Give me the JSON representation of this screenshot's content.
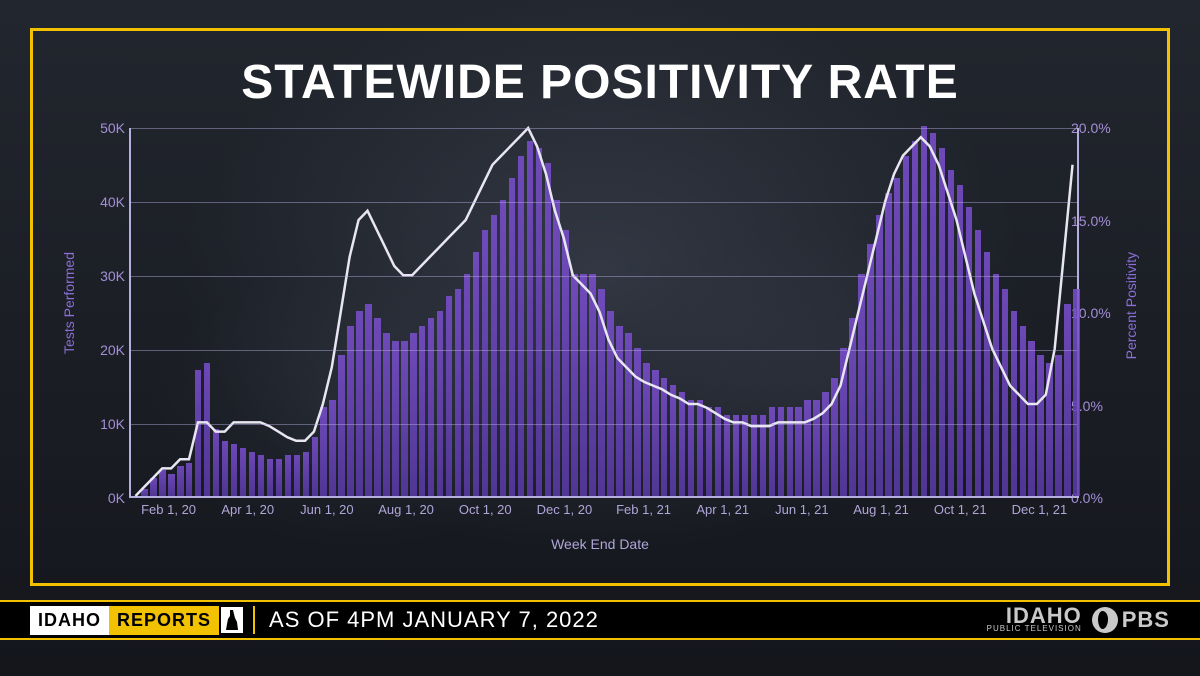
{
  "title": "STATEWIDE POSITIVITY RATE",
  "lower_third": {
    "brand_left": "IDAHO",
    "brand_right": "REPORTS",
    "subtitle": "AS OF 4PM JANUARY 7, 2022",
    "station_top": "IDAHO",
    "station_bottom": "PUBLIC TELEVISION",
    "pbs": "PBS"
  },
  "chart": {
    "type": "combo-bar-line",
    "y_left_label": "Tests Performed",
    "y_right_label": "Percent Positivity",
    "x_label": "Week End Date",
    "background_color": "transparent",
    "axis_color": "#b7aee0",
    "grid_color": "rgba(183,174,224,0.45)",
    "bar_color": "#6b46c8",
    "bar_gradient_top": "#7b4fd0",
    "bar_gradient_bottom": "#5a3aa8",
    "line_color": "#e8e6f2",
    "line_width": 2.5,
    "tick_font_color": "#a48ed8",
    "label_font_color": "#8b6fd6",
    "title_font_color": "#ffffff",
    "title_fontsize": 48,
    "label_fontsize": 14,
    "tick_fontsize": 14,
    "y_left": {
      "min": 0,
      "max": 50000,
      "ticks": [
        "0K",
        "10K",
        "20K",
        "30K",
        "40K",
        "50K"
      ]
    },
    "y_right": {
      "min": 0,
      "max": 20,
      "ticks": [
        "0.0%",
        "5.0%",
        "10.0%",
        "15.0%",
        "20.0%"
      ]
    },
    "x_ticks": [
      "Feb 1, 20",
      "Apr 1, 20",
      "Jun 1, 20",
      "Aug 1, 20",
      "Oct 1, 20",
      "Dec 1, 20",
      "Feb 1, 21",
      "Apr 1, 21",
      "Jun 1, 21",
      "Aug 1, 21",
      "Oct 1, 21",
      "Dec 1, 21"
    ],
    "bars_tests": [
      0,
      1000,
      2500,
      3500,
      3000,
      4000,
      4500,
      17000,
      18000,
      9000,
      7500,
      7000,
      6500,
      6000,
      5500,
      5000,
      5000,
      5500,
      5500,
      6000,
      8000,
      12000,
      13000,
      19000,
      23000,
      25000,
      26000,
      24000,
      22000,
      21000,
      21000,
      22000,
      23000,
      24000,
      25000,
      27000,
      28000,
      30000,
      33000,
      36000,
      38000,
      40000,
      43000,
      46000,
      48000,
      47000,
      45000,
      40000,
      36000,
      30000,
      30000,
      30000,
      28000,
      25000,
      23000,
      22000,
      20000,
      18000,
      17000,
      16000,
      15000,
      14000,
      13000,
      13000,
      12000,
      12000,
      11000,
      11000,
      11000,
      11000,
      11000,
      12000,
      12000,
      12000,
      12000,
      13000,
      13000,
      14000,
      16000,
      20000,
      24000,
      30000,
      34000,
      38000,
      41000,
      43000,
      46000,
      48000,
      50000,
      49000,
      47000,
      44000,
      42000,
      39000,
      36000,
      33000,
      30000,
      28000,
      25000,
      23000,
      21000,
      19000,
      18000,
      19000,
      26000,
      28000
    ],
    "line_positivity": [
      0,
      0.5,
      1.0,
      1.5,
      1.5,
      2.0,
      2.0,
      4.0,
      4.0,
      3.5,
      3.5,
      4.0,
      4.0,
      4.0,
      4.0,
      3.8,
      3.5,
      3.2,
      3.0,
      3.0,
      3.5,
      5.0,
      7.0,
      10.0,
      13.0,
      15.0,
      15.5,
      14.5,
      13.5,
      12.5,
      12.0,
      12.0,
      12.5,
      13.0,
      13.5,
      14.0,
      14.5,
      15.0,
      16.0,
      17.0,
      18.0,
      18.5,
      19.0,
      19.5,
      20.0,
      19.0,
      17.5,
      15.5,
      14.0,
      12.0,
      11.5,
      11.0,
      10.0,
      8.5,
      7.5,
      7.0,
      6.5,
      6.2,
      6.0,
      5.8,
      5.5,
      5.3,
      5.0,
      5.0,
      4.8,
      4.5,
      4.2,
      4.0,
      4.0,
      3.8,
      3.8,
      3.8,
      4.0,
      4.0,
      4.0,
      4.0,
      4.2,
      4.5,
      5.0,
      6.0,
      8.0,
      10.0,
      12.0,
      14.0,
      16.0,
      17.5,
      18.5,
      19.0,
      19.5,
      19.0,
      18.0,
      16.5,
      15.0,
      13.0,
      11.0,
      9.5,
      8.0,
      7.0,
      6.0,
      5.5,
      5.0,
      5.0,
      5.5,
      8.0,
      13.0,
      18.0
    ],
    "aspect_ratio": "950:370",
    "bar_width_ratio": 0.72
  },
  "frame_border_color": "#f2c200",
  "lower_third_bg": "#000000",
  "lower_third_accent": "#f2c200"
}
